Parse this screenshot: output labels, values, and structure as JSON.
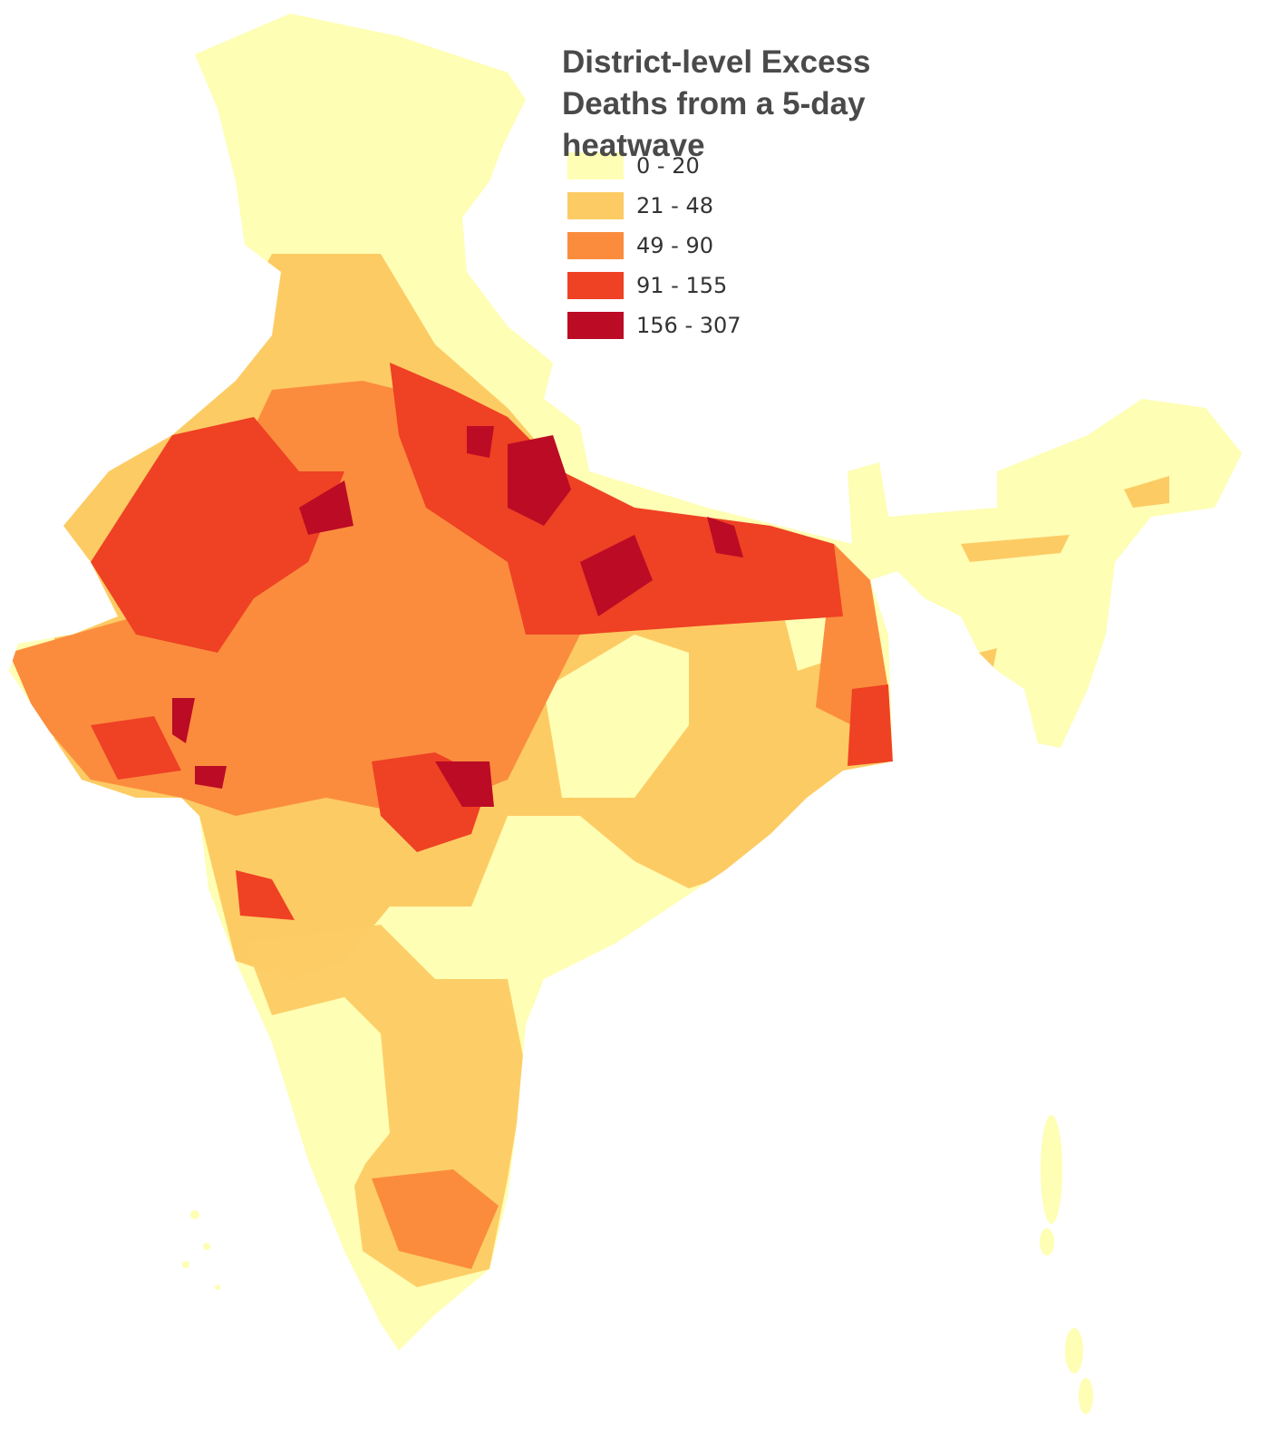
{
  "title": "District-level Excess Deaths from a 5-day heatwave",
  "legend": [
    {
      "label": "0 - 20",
      "color": "#fefeb4"
    },
    {
      "label": "21 - 48",
      "color": "#fdcb64"
    },
    {
      "label": "49 - 90",
      "color": "#fb8c3e"
    },
    {
      "label": "91 - 155",
      "color": "#ef4123"
    },
    {
      "label": "156 - 307",
      "color": "#bc0b25"
    }
  ]
}
